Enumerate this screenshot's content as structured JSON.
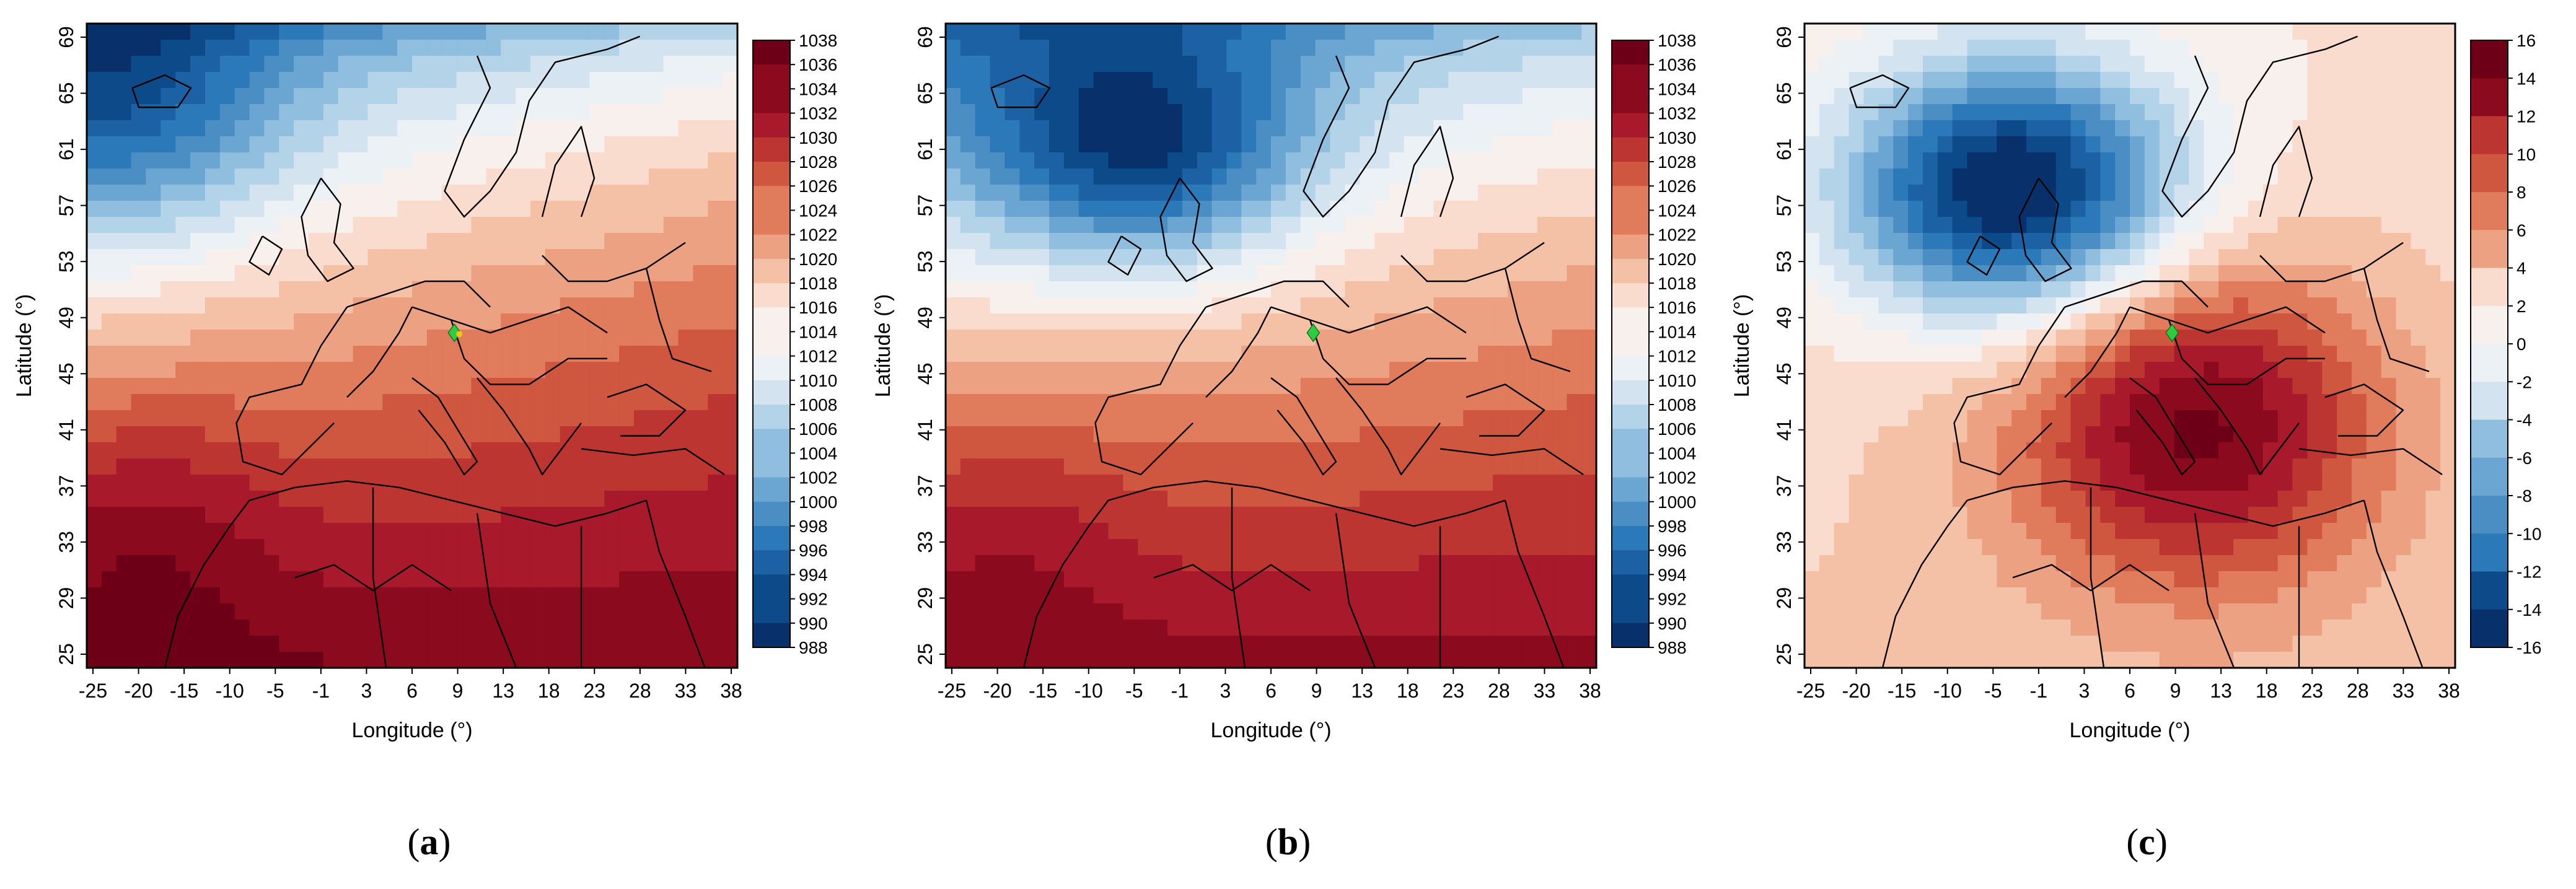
{
  "figure": {
    "panels": [
      {
        "id": "a",
        "label": "a",
        "field": "slp",
        "xlabel": "Longitude (°)",
        "ylabel": "Latitude (°)",
        "colorbar_ticks": [
          "1038",
          "1036",
          "1034",
          "1032",
          "1030",
          "1028",
          "1026",
          "1024",
          "1022",
          "1020",
          "1018",
          "1016",
          "1014",
          "1012",
          "1010",
          "1008",
          "1006",
          "1004",
          "1002",
          "1000",
          "998",
          "996",
          "994",
          "992",
          "990",
          "988"
        ]
      },
      {
        "id": "b",
        "label": "b",
        "field": "slp2",
        "xlabel": "Longitude (°)",
        "ylabel": "Latitude (°)",
        "colorbar_ticks": [
          "1038",
          "1036",
          "1034",
          "1032",
          "1030",
          "1028",
          "1026",
          "1024",
          "1022",
          "1020",
          "1018",
          "1016",
          "1014",
          "1012",
          "1010",
          "1008",
          "1006",
          "1004",
          "1002",
          "1000",
          "998",
          "996",
          "994",
          "992",
          "990",
          "988"
        ]
      },
      {
        "id": "c",
        "label": "c",
        "field": "anom",
        "xlabel": "Longitude (°)",
        "ylabel": "Latitude (°)",
        "colorbar_ticks": [
          "16",
          "14",
          "12",
          "10",
          "8",
          "6",
          "4",
          "2",
          "0",
          "-2",
          "-4",
          "-6",
          "-8",
          "-10",
          "-12",
          "-14",
          "-16"
        ]
      }
    ],
    "x_ticks": [
      "-25",
      "-20",
      "-15",
      "-10",
      "-5",
      "-1",
      "3",
      "6",
      "9",
      "13",
      "18",
      "23",
      "28",
      "33",
      "38"
    ],
    "y_ticks": [
      "69",
      "65",
      "61",
      "57",
      "53",
      "49",
      "45",
      "41",
      "37",
      "33",
      "29",
      "25"
    ],
    "colors": {
      "deep_blue": "#08306b",
      "mid_blue": "#4a8ec4",
      "white": "#f5f5f5",
      "mid_red": "#e07b5b",
      "deep_red": "#8b0a1d",
      "marker": "#2ecc40",
      "marker_highlight": "#f1c40f"
    }
  }
}
